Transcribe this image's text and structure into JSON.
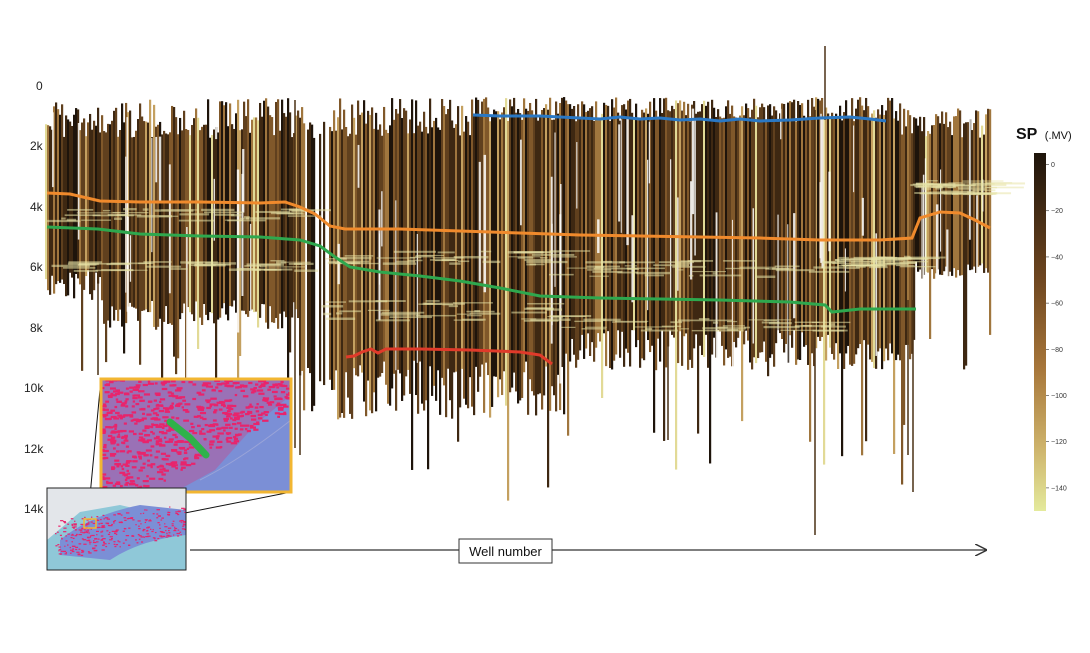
{
  "y_axis": {
    "tick_labels": [
      "0",
      "2k",
      "4k",
      "6k",
      "8k",
      "10k",
      "12k",
      "14k"
    ],
    "tick_values": [
      0,
      2000,
      4000,
      6000,
      8000,
      10000,
      12000,
      14000
    ]
  },
  "x_axis": {
    "label": "Well number"
  },
  "colorbar": {
    "title": "SP",
    "unit": "(.MV)",
    "tick_labels": [
      "0",
      "−20",
      "−40",
      "−60",
      "−80",
      "−100",
      "−120",
      "−140"
    ],
    "tick_values": [
      0,
      -20,
      -40,
      -60,
      -80,
      -100,
      -120,
      -140
    ],
    "range": [
      5,
      -150
    ],
    "color_top": "#1e140b",
    "color_mid": "#8a5c28",
    "color_bottom": "#e4ea9c"
  },
  "colors": {
    "horizon_blue": "#2a78c4",
    "horizon_orange": "#f08a2c",
    "horizon_green": "#2ea84e",
    "horizon_red": "#e03a2a",
    "inset_frame": "#f2b632",
    "map_sea": "#7b8fd6",
    "map_wells": "#e8246c",
    "map_highlight": "#2fb24a"
  },
  "inset_map": {
    "description_hidden": true
  }
}
